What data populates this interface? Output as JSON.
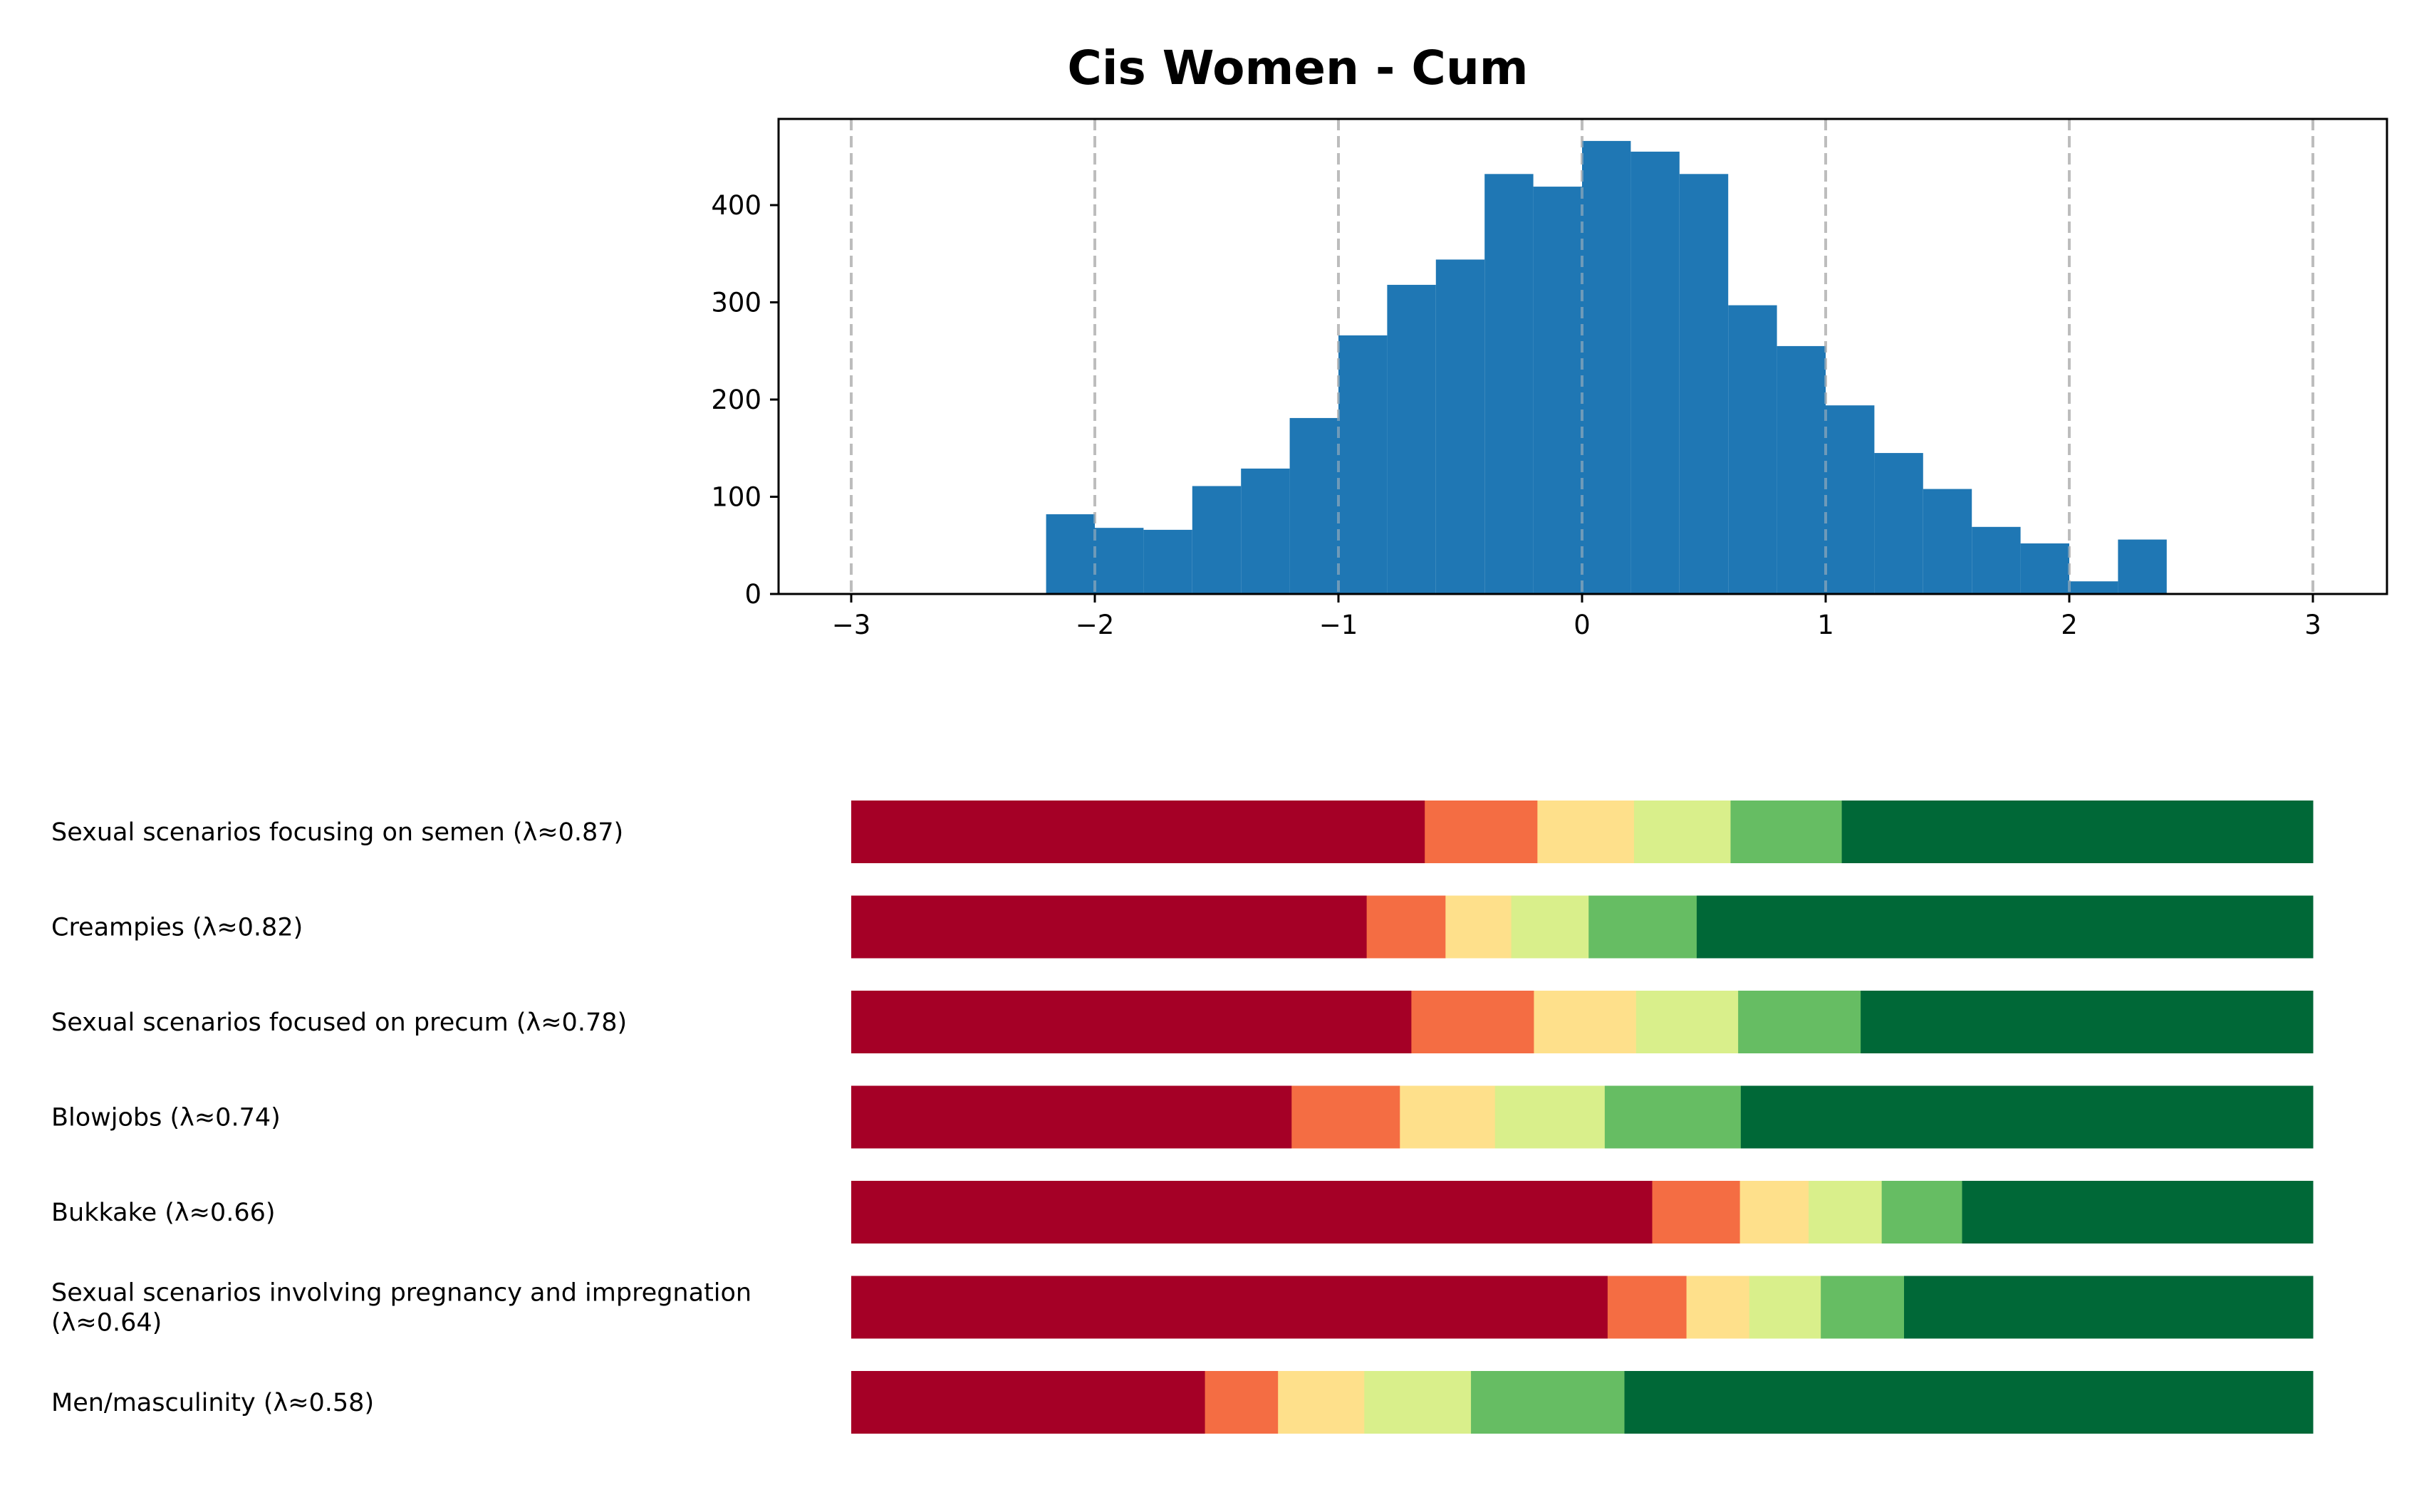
{
  "chart_data": [
    {
      "type": "bar",
      "subtype": "histogram",
      "title": "Cis Women - Cum",
      "xlabel": "",
      "ylabel": "",
      "xlim": [
        -3.3,
        3.3
      ],
      "ylim": [
        0,
        490
      ],
      "xticks": [
        -3,
        -2,
        -1,
        0,
        1,
        2,
        3
      ],
      "xtick_labels": [
        "−3",
        "−2",
        "−1",
        "0",
        "1",
        "2",
        "3"
      ],
      "yticks": [
        0,
        100,
        200,
        300,
        400
      ],
      "ytick_labels": [
        "0",
        "100",
        "200",
        "300",
        "400"
      ],
      "grid": "vertical dashed at integer x",
      "bar_color": "#1f77b4",
      "bin_width": 0.2,
      "bin_starts": [
        -2.2,
        -2.0,
        -1.8,
        -1.6,
        -1.4,
        -1.2,
        -1.0,
        -0.8,
        -0.6,
        -0.4,
        -0.2,
        0.0,
        0.2,
        0.4,
        0.6,
        0.8,
        1.0,
        1.2,
        1.4,
        1.6,
        1.8,
        2.0,
        2.2
      ],
      "values": [
        82,
        68,
        66,
        111,
        129,
        181,
        266,
        318,
        344,
        432,
        419,
        466,
        455,
        432,
        297,
        255,
        194,
        145,
        108,
        69,
        52,
        13,
        56
      ]
    },
    {
      "type": "bar",
      "subtype": "stacked-horizontal-100%",
      "categories": [
        "Sexual scenarios focusing on semen (λ≈0.87)",
        "Creampies (λ≈0.82)",
        "Sexual scenarios focused on precum (λ≈0.78)",
        "Blowjobs (λ≈0.74)",
        "Bukkake (λ≈0.66)",
        "Sexual scenarios involving pregnancy and impregnation (λ≈0.64)",
        "Men/masculinity (λ≈0.58)"
      ],
      "label_lines": [
        [
          "Sexual scenarios focusing on semen (λ≈0.87)"
        ],
        [
          "Creampies (λ≈0.82)"
        ],
        [
          "Sexual scenarios focused on precum (λ≈0.78)"
        ],
        [
          "Blowjobs (λ≈0.74)"
        ],
        [
          "Bukkake (λ≈0.66)"
        ],
        [
          "Sexual scenarios involving pregnancy and impregnation",
          "(λ≈0.64)"
        ],
        [
          "Men/masculinity (λ≈0.58)"
        ]
      ],
      "segment_colors": [
        "#a50026",
        "#f46d43",
        "#fee08b",
        "#d9ef8b",
        "#66bd63",
        "#006837"
      ],
      "series": [
        {
          "name": "level-1",
          "values": [
            0.392,
            0.353,
            0.384,
            0.301,
            0.548,
            0.518,
            0.242
          ]
        },
        {
          "name": "level-2",
          "values": [
            0.077,
            0.054,
            0.084,
            0.074,
            0.06,
            0.054,
            0.05
          ]
        },
        {
          "name": "level-3",
          "values": [
            0.066,
            0.045,
            0.07,
            0.065,
            0.047,
            0.043,
            0.059
          ]
        },
        {
          "name": "level-4",
          "values": [
            0.066,
            0.053,
            0.07,
            0.075,
            0.05,
            0.049,
            0.073
          ]
        },
        {
          "name": "level-5",
          "values": [
            0.076,
            0.074,
            0.084,
            0.093,
            0.055,
            0.057,
            0.105
          ]
        },
        {
          "name": "level-6",
          "values": [
            0.322,
            0.422,
            0.31,
            0.391,
            0.24,
            0.28,
            0.471
          ]
        }
      ],
      "xlim": [
        0,
        1
      ],
      "axes_visible": false
    }
  ]
}
